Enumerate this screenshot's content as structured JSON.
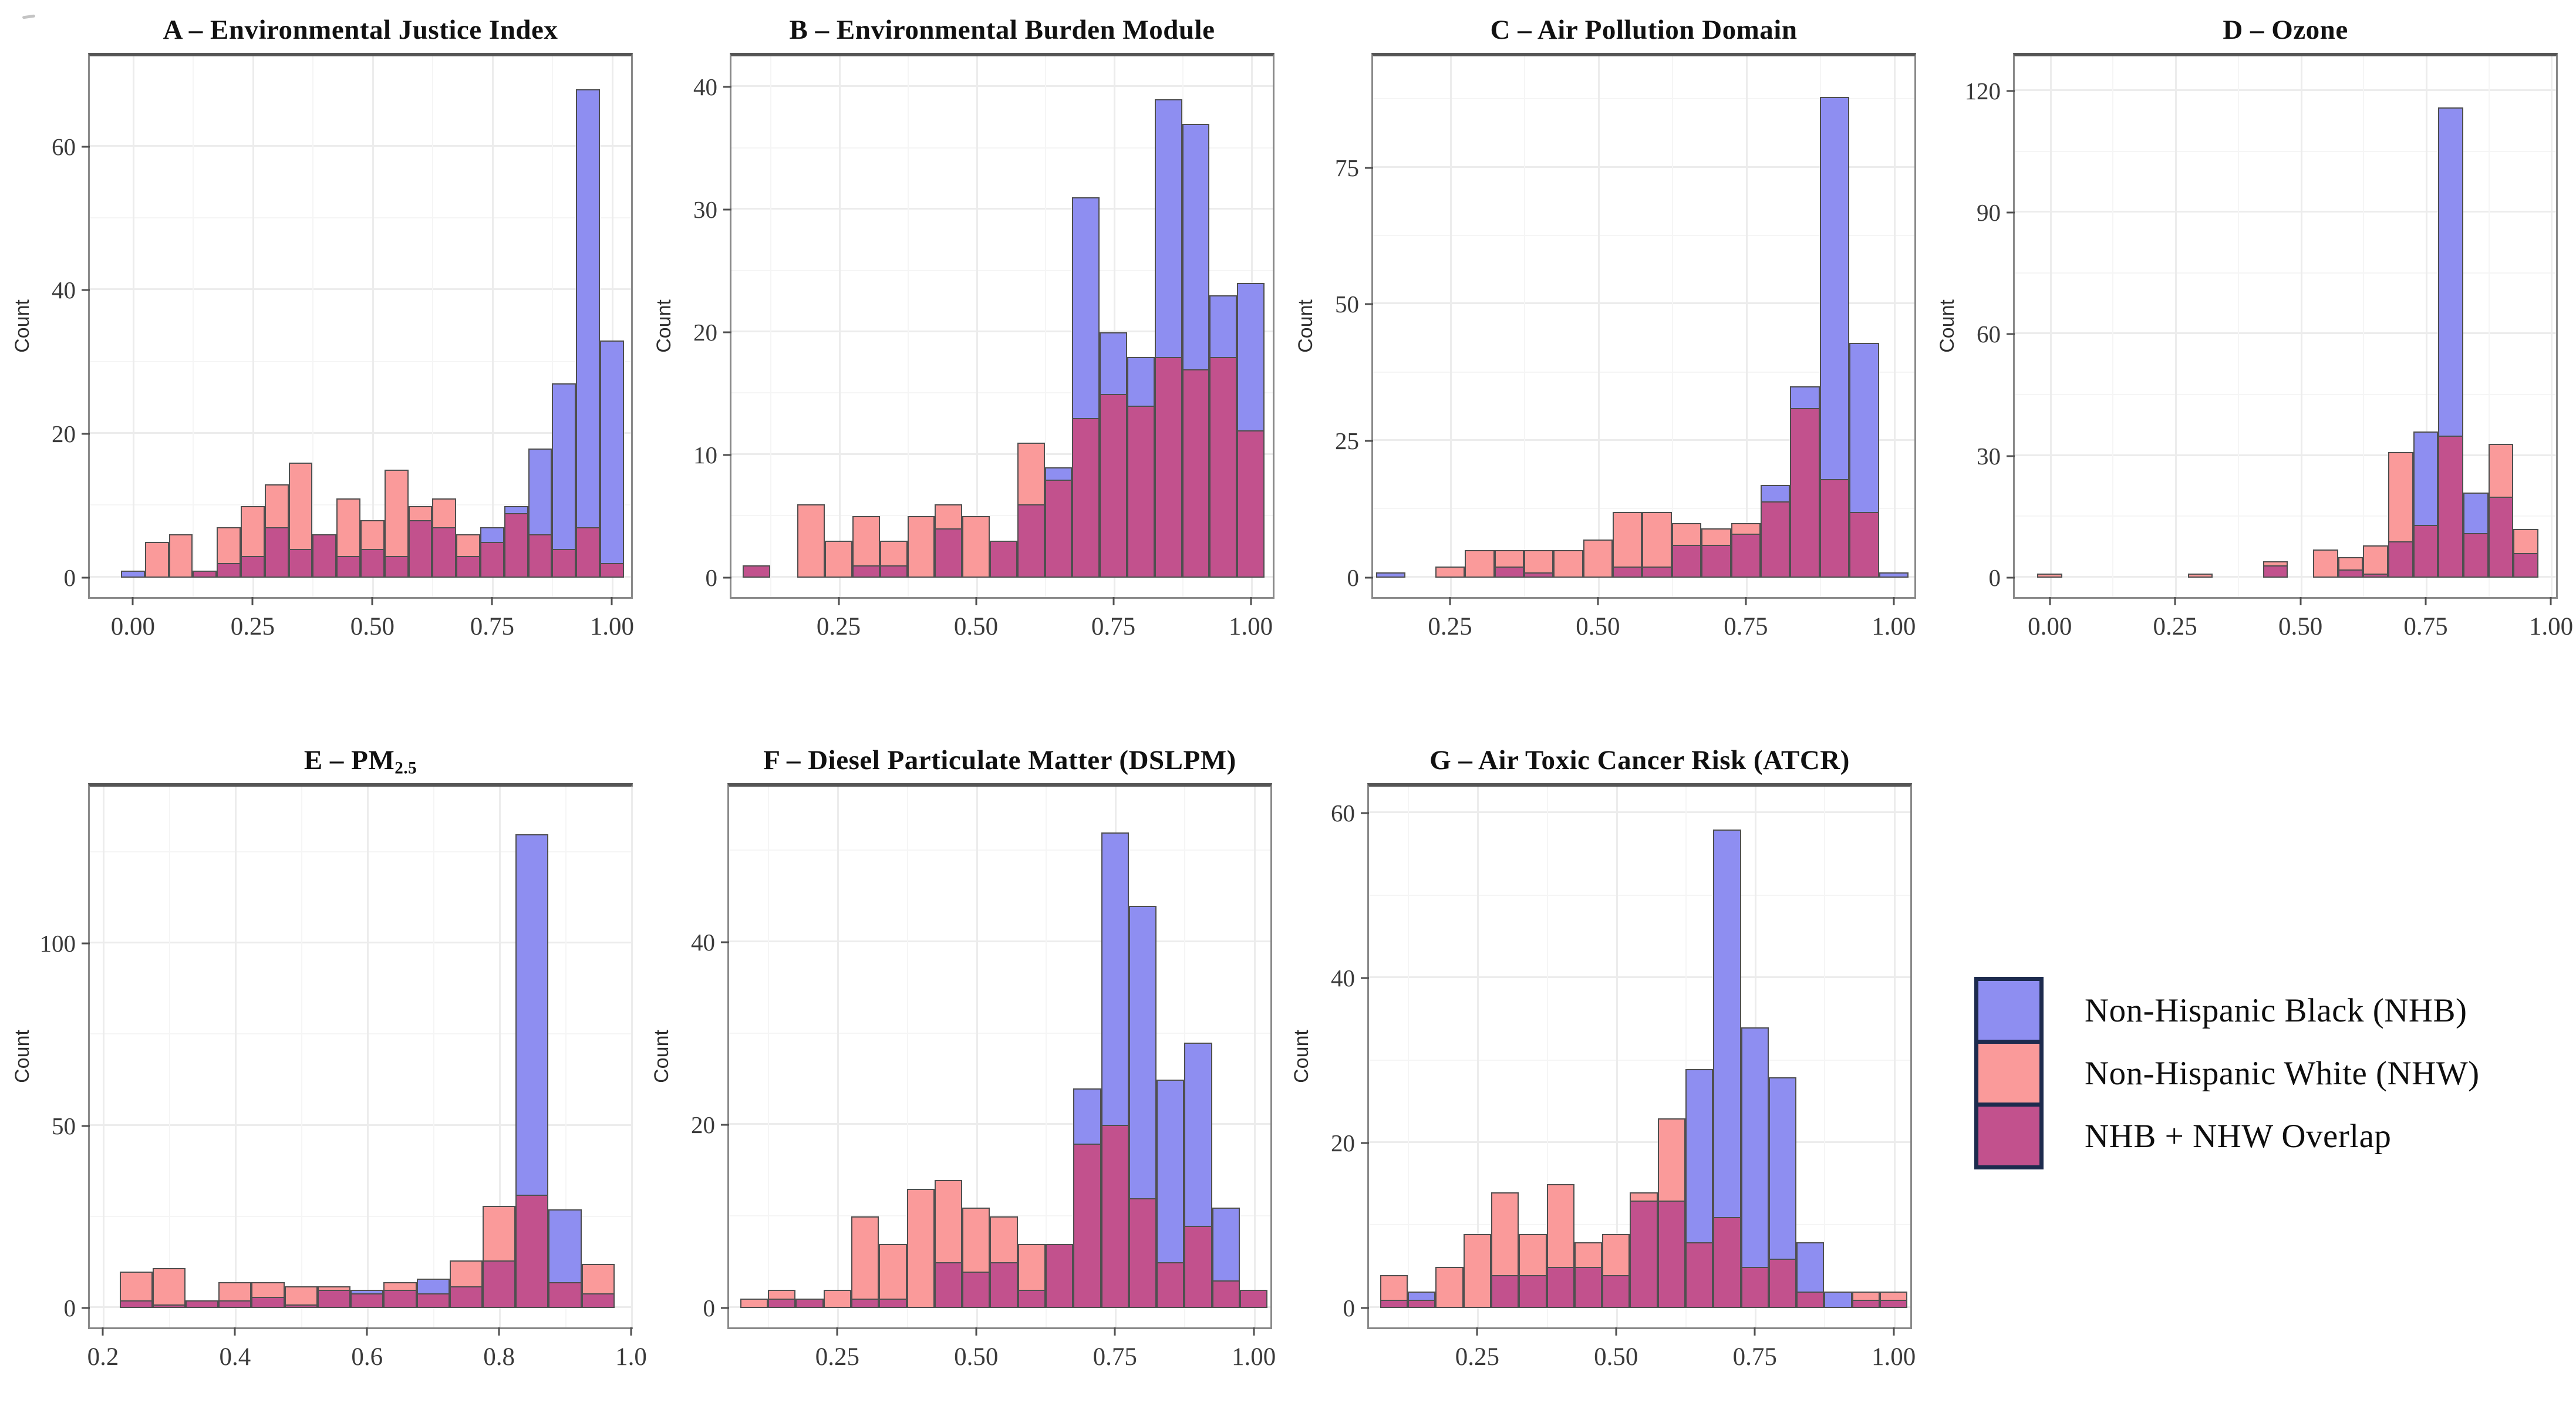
{
  "figure": {
    "background": "#ffffff",
    "description_visible_text_only": true
  },
  "colors": {
    "nhb": "#8e8ef1",
    "nhw": "#fa9a9a",
    "overlap": "#c2518d",
    "bar_border": "#4f4f4f",
    "panel_border": "#8a8a8a",
    "grid_major": "#ececec",
    "grid_minor": "#f5f5f5",
    "tick_color": "#4f4f4f",
    "text_color": "#1d1d1d",
    "legend_swatch_border": "#1d2b4e"
  },
  "legend": {
    "items": [
      {
        "key": "nhb",
        "label": "Non-Hispanic Black (NHB)"
      },
      {
        "key": "nhw",
        "label": "Non-Hispanic White (NHW)"
      },
      {
        "key": "overlap",
        "label": "NHB + NHW Overlap"
      }
    ]
  },
  "chart_data": [
    {
      "type": "bar",
      "subtype": "overlaid-histogram",
      "title": "A – Environmental Justice Index",
      "title_main": "A – Environmental Justice Index",
      "title_sub": "",
      "xlabel": "",
      "ylabel": "Count",
      "legend_position": "none",
      "grid": true,
      "xlim": [
        -0.09,
        1.04
      ],
      "ylim": [
        0,
        70
      ],
      "bin_width": 0.05,
      "x_ticks": [
        0.0,
        0.25,
        0.5,
        0.75,
        1.0
      ],
      "x_tick_labels": [
        "0.00",
        "0.25",
        "0.50",
        "0.75",
        "1.00"
      ],
      "x_minor": [
        0.125,
        0.375,
        0.625,
        0.875
      ],
      "y_ticks": [
        0,
        20,
        40,
        60
      ],
      "y_tick_labels": [
        "0",
        "20",
        "40",
        "60"
      ],
      "y_minor": [
        10,
        30,
        50
      ],
      "series": [
        {
          "name": "NHB"
        },
        {
          "name": "NHW"
        },
        {
          "name": "NHB + NHW Overlap = min(NHB, NHW)"
        }
      ],
      "bins": [
        {
          "x": 0.0,
          "nhb": 1,
          "nhw": 0
        },
        {
          "x": 0.05,
          "nhb": 0,
          "nhw": 5
        },
        {
          "x": 0.1,
          "nhb": 0,
          "nhw": 6
        },
        {
          "x": 0.15,
          "nhb": 1,
          "nhw": 1
        },
        {
          "x": 0.2,
          "nhb": 2,
          "nhw": 7
        },
        {
          "x": 0.25,
          "nhb": 3,
          "nhw": 10
        },
        {
          "x": 0.3,
          "nhb": 7,
          "nhw": 13
        },
        {
          "x": 0.35,
          "nhb": 4,
          "nhw": 16
        },
        {
          "x": 0.4,
          "nhb": 6,
          "nhw": 6
        },
        {
          "x": 0.45,
          "nhb": 3,
          "nhw": 11
        },
        {
          "x": 0.5,
          "nhb": 4,
          "nhw": 8
        },
        {
          "x": 0.55,
          "nhb": 3,
          "nhw": 15
        },
        {
          "x": 0.6,
          "nhb": 8,
          "nhw": 10
        },
        {
          "x": 0.65,
          "nhb": 7,
          "nhw": 11
        },
        {
          "x": 0.7,
          "nhb": 3,
          "nhw": 6
        },
        {
          "x": 0.75,
          "nhb": 7,
          "nhw": 5
        },
        {
          "x": 0.8,
          "nhb": 10,
          "nhw": 9
        },
        {
          "x": 0.85,
          "nhb": 18,
          "nhw": 6
        },
        {
          "x": 0.9,
          "nhb": 27,
          "nhw": 4
        },
        {
          "x": 0.95,
          "nhb": 68,
          "nhw": 7
        },
        {
          "x": 1.0,
          "nhb": 33,
          "nhw": 2
        }
      ]
    },
    {
      "type": "bar",
      "subtype": "overlaid-histogram",
      "title": "B – Environmental Burden Module",
      "title_main": "B – Environmental Burden Module",
      "title_sub": "",
      "xlabel": "",
      "ylabel": "Count",
      "grid": true,
      "xlim": [
        0.055,
        1.04
      ],
      "ylim": [
        0,
        41
      ],
      "bin_width": 0.05,
      "x_ticks": [
        0.25,
        0.5,
        0.75,
        1.0
      ],
      "x_tick_labels": [
        "0.25",
        "0.50",
        "0.75",
        "1.00"
      ],
      "x_minor": [
        0.125,
        0.375,
        0.625,
        0.875
      ],
      "y_ticks": [
        0,
        10,
        20,
        30,
        40
      ],
      "y_tick_labels": [
        "0",
        "10",
        "20",
        "30",
        "40"
      ],
      "y_minor": [
        5,
        15,
        25,
        35
      ],
      "bins": [
        {
          "x": 0.1,
          "nhb": 1,
          "nhw": 1
        },
        {
          "x": 0.2,
          "nhb": 0,
          "nhw": 6
        },
        {
          "x": 0.25,
          "nhb": 0,
          "nhw": 3
        },
        {
          "x": 0.3,
          "nhb": 1,
          "nhw": 5
        },
        {
          "x": 0.35,
          "nhb": 1,
          "nhw": 3
        },
        {
          "x": 0.4,
          "nhb": 0,
          "nhw": 5
        },
        {
          "x": 0.45,
          "nhb": 4,
          "nhw": 6
        },
        {
          "x": 0.5,
          "nhb": 0,
          "nhw": 5
        },
        {
          "x": 0.55,
          "nhb": 3,
          "nhw": 3
        },
        {
          "x": 0.6,
          "nhb": 6,
          "nhw": 11
        },
        {
          "x": 0.65,
          "nhb": 9,
          "nhw": 8
        },
        {
          "x": 0.7,
          "nhb": 31,
          "nhw": 13
        },
        {
          "x": 0.75,
          "nhb": 20,
          "nhw": 15
        },
        {
          "x": 0.8,
          "nhb": 18,
          "nhw": 14
        },
        {
          "x": 0.85,
          "nhb": 39,
          "nhw": 18
        },
        {
          "x": 0.9,
          "nhb": 37,
          "nhw": 17
        },
        {
          "x": 0.95,
          "nhb": 23,
          "nhw": 18
        },
        {
          "x": 1.0,
          "nhb": 24,
          "nhw": 12
        }
      ]
    },
    {
      "type": "bar",
      "subtype": "overlaid-histogram",
      "title": "C – Air Pollution Domain",
      "title_main": "C – Air Pollution Domain",
      "title_sub": "",
      "xlabel": "",
      "ylabel": "Count",
      "grid": true,
      "xlim": [
        0.12,
        1.035
      ],
      "ylim": [
        0,
        92
      ],
      "bin_width": 0.05,
      "x_ticks": [
        0.25,
        0.5,
        0.75,
        1.0
      ],
      "x_tick_labels": [
        "0.25",
        "0.50",
        "0.75",
        "1.00"
      ],
      "x_minor": [
        0.375,
        0.625,
        0.875
      ],
      "y_ticks": [
        0,
        25,
        50,
        75
      ],
      "y_tick_labels": [
        "0",
        "25",
        "50",
        "75"
      ],
      "y_minor": [
        12.5,
        37.5,
        62.5,
        87.5
      ],
      "bins": [
        {
          "x": 0.15,
          "nhb": 1,
          "nhw": 0
        },
        {
          "x": 0.25,
          "nhb": 0,
          "nhw": 2
        },
        {
          "x": 0.3,
          "nhb": 0,
          "nhw": 5
        },
        {
          "x": 0.35,
          "nhb": 2,
          "nhw": 5
        },
        {
          "x": 0.4,
          "nhb": 1,
          "nhw": 5
        },
        {
          "x": 0.45,
          "nhb": 0,
          "nhw": 5
        },
        {
          "x": 0.5,
          "nhb": 0,
          "nhw": 7
        },
        {
          "x": 0.55,
          "nhb": 2,
          "nhw": 12
        },
        {
          "x": 0.6,
          "nhb": 2,
          "nhw": 12
        },
        {
          "x": 0.65,
          "nhb": 6,
          "nhw": 10
        },
        {
          "x": 0.7,
          "nhb": 6,
          "nhw": 9
        },
        {
          "x": 0.75,
          "nhb": 8,
          "nhw": 10
        },
        {
          "x": 0.8,
          "nhb": 17,
          "nhw": 14
        },
        {
          "x": 0.85,
          "nhb": 35,
          "nhw": 31
        },
        {
          "x": 0.9,
          "nhb": 88,
          "nhw": 18
        },
        {
          "x": 0.95,
          "nhb": 43,
          "nhw": 12
        },
        {
          "x": 1.0,
          "nhb": 1,
          "nhw": 0
        }
      ]
    },
    {
      "type": "bar",
      "subtype": "overlaid-histogram",
      "title": "D – Ozone",
      "title_main": "D – Ozone",
      "title_sub": "",
      "xlabel": "",
      "ylabel": "Count",
      "grid": true,
      "xlim": [
        -0.07,
        1.01
      ],
      "ylim": [
        0,
        124
      ],
      "bin_width": 0.05,
      "x_ticks": [
        0.0,
        0.25,
        0.5,
        0.75,
        1.0
      ],
      "x_tick_labels": [
        "0.00",
        "0.25",
        "0.50",
        "0.75",
        "1.00"
      ],
      "x_minor": [
        0.125,
        0.375,
        0.625,
        0.875
      ],
      "y_ticks": [
        0,
        30,
        60,
        90,
        120
      ],
      "y_tick_labels": [
        "0",
        "30",
        "60",
        "90",
        "120"
      ],
      "y_minor": [
        15,
        45,
        75,
        105
      ],
      "bins": [
        {
          "x": 0.0,
          "nhb": 0,
          "nhw": 1
        },
        {
          "x": 0.3,
          "nhb": 0,
          "nhw": 1
        },
        {
          "x": 0.45,
          "nhb": 3,
          "nhw": 4
        },
        {
          "x": 0.55,
          "nhb": 0,
          "nhw": 7
        },
        {
          "x": 0.6,
          "nhb": 2,
          "nhw": 5
        },
        {
          "x": 0.65,
          "nhb": 1,
          "nhw": 8
        },
        {
          "x": 0.7,
          "nhb": 9,
          "nhw": 31
        },
        {
          "x": 0.75,
          "nhb": 36,
          "nhw": 13
        },
        {
          "x": 0.8,
          "nhb": 116,
          "nhw": 35
        },
        {
          "x": 0.85,
          "nhb": 21,
          "nhw": 11
        },
        {
          "x": 0.9,
          "nhb": 20,
          "nhw": 33
        },
        {
          "x": 0.95,
          "nhb": 6,
          "nhw": 12
        }
      ]
    },
    {
      "type": "bar",
      "subtype": "overlaid-histogram",
      "title": "E – PM2.5",
      "title_main": "E – PM",
      "title_sub": "2.5",
      "xlabel": "",
      "ylabel": "Count",
      "grid": true,
      "xlim": [
        0.18,
        1.0
      ],
      "ylim": [
        0,
        138
      ],
      "bin_width": 0.05,
      "x_ticks": [
        0.2,
        0.4,
        0.6,
        0.8,
        1.0
      ],
      "x_tick_labels": [
        "0.2",
        "0.4",
        "0.6",
        "0.8",
        "1.0"
      ],
      "x_minor": [
        0.3,
        0.5,
        0.7,
        0.9
      ],
      "y_ticks": [
        0,
        50,
        100
      ],
      "y_tick_labels": [
        "0",
        "50",
        "100"
      ],
      "y_minor": [
        25,
        75,
        125
      ],
      "bins": [
        {
          "x": 0.25,
          "nhb": 2,
          "nhw": 10
        },
        {
          "x": 0.3,
          "nhb": 1,
          "nhw": 11
        },
        {
          "x": 0.35,
          "nhb": 2,
          "nhw": 2
        },
        {
          "x": 0.4,
          "nhb": 2,
          "nhw": 7
        },
        {
          "x": 0.45,
          "nhb": 3,
          "nhw": 7
        },
        {
          "x": 0.5,
          "nhb": 1,
          "nhw": 6
        },
        {
          "x": 0.55,
          "nhb": 5,
          "nhw": 6
        },
        {
          "x": 0.6,
          "nhb": 5,
          "nhw": 4
        },
        {
          "x": 0.65,
          "nhb": 5,
          "nhw": 7
        },
        {
          "x": 0.7,
          "nhb": 8,
          "nhw": 4
        },
        {
          "x": 0.75,
          "nhb": 6,
          "nhw": 13
        },
        {
          "x": 0.8,
          "nhb": 13,
          "nhw": 28
        },
        {
          "x": 0.85,
          "nhb": 130,
          "nhw": 31
        },
        {
          "x": 0.9,
          "nhb": 27,
          "nhw": 7
        },
        {
          "x": 0.95,
          "nhb": 4,
          "nhw": 12
        }
      ]
    },
    {
      "type": "bar",
      "subtype": "overlaid-histogram",
      "title": "F – Diesel Particulate Matter (DSLPM)",
      "title_main": "F – Diesel Particulate Matter (DSLPM)",
      "title_sub": "",
      "xlabel": "",
      "ylabel": "Count",
      "grid": true,
      "xlim": [
        0.055,
        1.03
      ],
      "ylim": [
        0,
        55
      ],
      "bin_width": 0.05,
      "x_ticks": [
        0.25,
        0.5,
        0.75,
        1.0
      ],
      "x_tick_labels": [
        "0.25",
        "0.50",
        "0.75",
        "1.00"
      ],
      "x_minor": [
        0.125,
        0.375,
        0.625,
        0.875
      ],
      "y_ticks": [
        0,
        20,
        40
      ],
      "y_tick_labels": [
        "0",
        "20",
        "40"
      ],
      "y_minor": [
        10,
        30,
        50
      ],
      "bins": [
        {
          "x": 0.1,
          "nhb": 0,
          "nhw": 1
        },
        {
          "x": 0.15,
          "nhb": 1,
          "nhw": 2
        },
        {
          "x": 0.2,
          "nhb": 1,
          "nhw": 1
        },
        {
          "x": 0.25,
          "nhb": 0,
          "nhw": 2
        },
        {
          "x": 0.3,
          "nhb": 1,
          "nhw": 10
        },
        {
          "x": 0.35,
          "nhb": 1,
          "nhw": 7
        },
        {
          "x": 0.4,
          "nhb": 0,
          "nhw": 13
        },
        {
          "x": 0.45,
          "nhb": 5,
          "nhw": 14
        },
        {
          "x": 0.5,
          "nhb": 4,
          "nhw": 11
        },
        {
          "x": 0.55,
          "nhb": 5,
          "nhw": 10
        },
        {
          "x": 0.6,
          "nhb": 2,
          "nhw": 7
        },
        {
          "x": 0.65,
          "nhb": 7,
          "nhw": 7
        },
        {
          "x": 0.7,
          "nhb": 24,
          "nhw": 18
        },
        {
          "x": 0.75,
          "nhb": 52,
          "nhw": 20
        },
        {
          "x": 0.8,
          "nhb": 44,
          "nhw": 12
        },
        {
          "x": 0.85,
          "nhb": 25,
          "nhw": 5
        },
        {
          "x": 0.9,
          "nhb": 29,
          "nhw": 9
        },
        {
          "x": 0.95,
          "nhb": 11,
          "nhw": 3
        },
        {
          "x": 1.0,
          "nhb": 2,
          "nhw": 2
        }
      ]
    },
    {
      "type": "bar",
      "subtype": "overlaid-histogram",
      "title": "G – Air Toxic Cancer Risk (ATCR)",
      "title_main": "G – Air Toxic Cancer Risk (ATCR)",
      "title_sub": "",
      "xlabel": "",
      "ylabel": "Count",
      "grid": true,
      "xlim": [
        0.055,
        1.03
      ],
      "ylim": [
        0,
        61
      ],
      "bin_width": 0.05,
      "x_ticks": [
        0.25,
        0.5,
        0.75,
        1.0
      ],
      "x_tick_labels": [
        "0.25",
        "0.50",
        "0.75",
        "1.00"
      ],
      "x_minor": [
        0.125,
        0.375,
        0.625,
        0.875
      ],
      "y_ticks": [
        0,
        20,
        40,
        60
      ],
      "y_tick_labels": [
        "0",
        "20",
        "40",
        "60"
      ],
      "y_minor": [
        10,
        30,
        50
      ],
      "bins": [
        {
          "x": 0.1,
          "nhb": 1,
          "nhw": 4
        },
        {
          "x": 0.15,
          "nhb": 2,
          "nhw": 1
        },
        {
          "x": 0.2,
          "nhb": 0,
          "nhw": 5
        },
        {
          "x": 0.25,
          "nhb": 0,
          "nhw": 9
        },
        {
          "x": 0.3,
          "nhb": 4,
          "nhw": 14
        },
        {
          "x": 0.35,
          "nhb": 4,
          "nhw": 9
        },
        {
          "x": 0.4,
          "nhb": 5,
          "nhw": 15
        },
        {
          "x": 0.45,
          "nhb": 5,
          "nhw": 8
        },
        {
          "x": 0.5,
          "nhb": 4,
          "nhw": 9
        },
        {
          "x": 0.55,
          "nhb": 13,
          "nhw": 14
        },
        {
          "x": 0.6,
          "nhb": 13,
          "nhw": 23
        },
        {
          "x": 0.65,
          "nhb": 29,
          "nhw": 8
        },
        {
          "x": 0.7,
          "nhb": 58,
          "nhw": 11
        },
        {
          "x": 0.75,
          "nhb": 34,
          "nhw": 5
        },
        {
          "x": 0.8,
          "nhb": 28,
          "nhw": 6
        },
        {
          "x": 0.85,
          "nhb": 8,
          "nhw": 2
        },
        {
          "x": 0.9,
          "nhb": 2,
          "nhw": 0
        },
        {
          "x": 0.95,
          "nhb": 1,
          "nhw": 2
        },
        {
          "x": 1.0,
          "nhb": 1,
          "nhw": 2
        }
      ]
    }
  ]
}
